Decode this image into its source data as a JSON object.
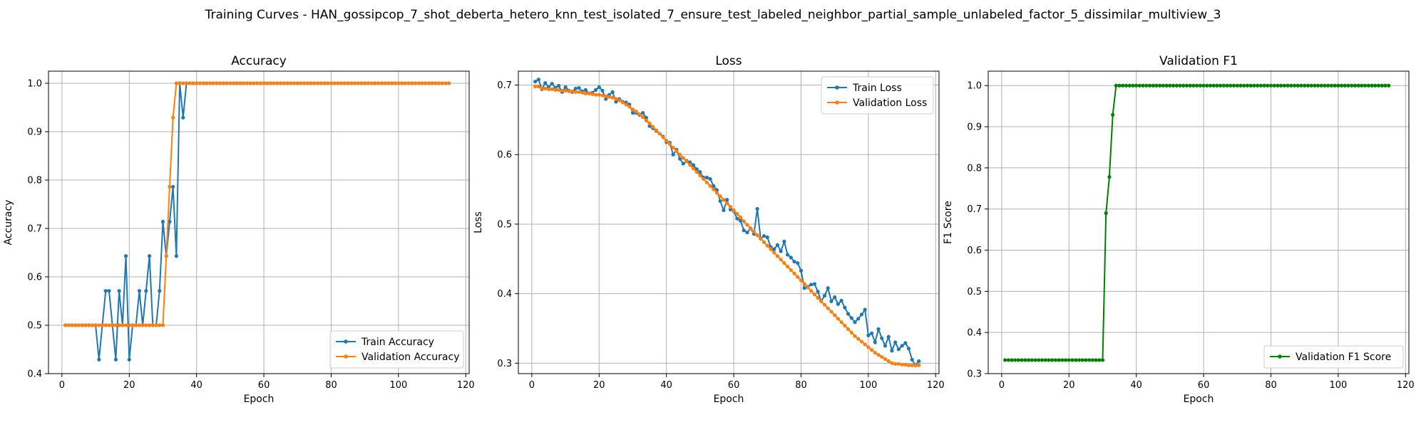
{
  "figure": {
    "title": "Training Curves - HAN_gossipcop_7_shot_deberta_hetero_knn_test_isolated_7_ensure_test_labeled_neighbor_partial_sample_unlabeled_factor_5_dissimilar_multiview_3"
  },
  "colors": {
    "blue": "#1f77b4",
    "orange": "#ff7f0e",
    "green": "#008000",
    "grid": "#b0b0b0"
  },
  "chart_data": [
    {
      "type": "line",
      "title": "Accuracy",
      "xlabel": "Epoch",
      "ylabel": "Accuracy",
      "xlim": [
        -4,
        121
      ],
      "ylim": [
        0.4,
        1.025
      ],
      "xticks": [
        0,
        20,
        40,
        60,
        80,
        100,
        120
      ],
      "yticks": [
        0.4,
        0.5,
        0.6,
        0.7,
        0.8,
        0.9,
        1.0
      ],
      "grid": true,
      "legend_position": "lower right",
      "series": [
        {
          "name": "Train Accuracy",
          "color": "#1f77b4",
          "x_range": [
            1,
            115
          ],
          "values": [
            0.5,
            0.5,
            0.5,
            0.5,
            0.5,
            0.5,
            0.5,
            0.5,
            0.5,
            0.5,
            0.429,
            0.5,
            0.571,
            0.571,
            0.5,
            0.429,
            0.571,
            0.5,
            0.643,
            0.429,
            0.5,
            0.5,
            0.571,
            0.5,
            0.571,
            0.643,
            0.5,
            0.5,
            0.571,
            0.714,
            0.643,
            0.714,
            0.786,
            0.643,
            1.0,
            0.929,
            1.0,
            1.0,
            1.0,
            1.0,
            1.0,
            1.0,
            1.0,
            1.0,
            1.0,
            1.0,
            1.0,
            1.0,
            1.0,
            1.0,
            1.0,
            1.0,
            1.0,
            1.0,
            1.0,
            1.0,
            1.0,
            1.0,
            1.0,
            1.0,
            1.0,
            1.0,
            1.0,
            1.0,
            1.0,
            1.0,
            1.0,
            1.0,
            1.0,
            1.0,
            1.0,
            1.0,
            1.0,
            1.0,
            1.0,
            1.0,
            1.0,
            1.0,
            1.0,
            1.0,
            1.0,
            1.0,
            1.0,
            1.0,
            1.0,
            1.0,
            1.0,
            1.0,
            1.0,
            1.0,
            1.0,
            1.0,
            1.0,
            1.0,
            1.0,
            1.0,
            1.0,
            1.0,
            1.0,
            1.0,
            1.0,
            1.0,
            1.0,
            1.0,
            1.0,
            1.0,
            1.0,
            1.0,
            1.0,
            1.0,
            1.0,
            1.0,
            1.0,
            1.0,
            1.0
          ]
        },
        {
          "name": "Validation Accuracy",
          "color": "#ff7f0e",
          "x_range": [
            1,
            115
          ],
          "values": [
            0.5,
            0.5,
            0.5,
            0.5,
            0.5,
            0.5,
            0.5,
            0.5,
            0.5,
            0.5,
            0.5,
            0.5,
            0.5,
            0.5,
            0.5,
            0.5,
            0.5,
            0.5,
            0.5,
            0.5,
            0.5,
            0.5,
            0.5,
            0.5,
            0.5,
            0.5,
            0.5,
            0.5,
            0.5,
            0.5,
            0.643,
            0.786,
            0.929,
            1.0,
            1.0,
            1.0,
            1.0,
            1.0,
            1.0,
            1.0,
            1.0,
            1.0,
            1.0,
            1.0,
            1.0,
            1.0,
            1.0,
            1.0,
            1.0,
            1.0,
            1.0,
            1.0,
            1.0,
            1.0,
            1.0,
            1.0,
            1.0,
            1.0,
            1.0,
            1.0,
            1.0,
            1.0,
            1.0,
            1.0,
            1.0,
            1.0,
            1.0,
            1.0,
            1.0,
            1.0,
            1.0,
            1.0,
            1.0,
            1.0,
            1.0,
            1.0,
            1.0,
            1.0,
            1.0,
            1.0,
            1.0,
            1.0,
            1.0,
            1.0,
            1.0,
            1.0,
            1.0,
            1.0,
            1.0,
            1.0,
            1.0,
            1.0,
            1.0,
            1.0,
            1.0,
            1.0,
            1.0,
            1.0,
            1.0,
            1.0,
            1.0,
            1.0,
            1.0,
            1.0,
            1.0,
            1.0,
            1.0,
            1.0,
            1.0,
            1.0,
            1.0,
            1.0,
            1.0,
            1.0,
            1.0
          ]
        }
      ]
    },
    {
      "type": "line",
      "title": "Loss",
      "xlabel": "Epoch",
      "ylabel": "Loss",
      "xlim": [
        -4,
        121
      ],
      "ylim": [
        0.285,
        0.72
      ],
      "xticks": [
        0,
        20,
        40,
        60,
        80,
        100,
        120
      ],
      "yticks": [
        0.3,
        0.4,
        0.5,
        0.6,
        0.7
      ],
      "grid": true,
      "legend_position": "upper right",
      "series": [
        {
          "name": "Train Loss",
          "color": "#1f77b4",
          "x_range": [
            1,
            115
          ],
          "values": [
            0.705,
            0.708,
            0.694,
            0.703,
            0.697,
            0.702,
            0.696,
            0.699,
            0.69,
            0.697,
            0.692,
            0.69,
            0.695,
            0.696,
            0.691,
            0.693,
            0.688,
            0.689,
            0.693,
            0.697,
            0.692,
            0.68,
            0.686,
            0.69,
            0.676,
            0.68,
            0.676,
            0.675,
            0.672,
            0.66,
            0.66,
            0.657,
            0.66,
            0.653,
            0.641,
            0.638,
            0.634,
            0.63,
            0.626,
            0.618,
            0.617,
            0.6,
            0.607,
            0.594,
            0.587,
            0.591,
            0.589,
            0.585,
            0.579,
            0.575,
            0.567,
            0.567,
            0.565,
            0.555,
            0.549,
            0.533,
            0.52,
            0.535,
            0.521,
            0.519,
            0.508,
            0.505,
            0.491,
            0.488,
            0.494,
            0.486,
            0.522,
            0.479,
            0.483,
            0.481,
            0.467,
            0.464,
            0.47,
            0.461,
            0.475,
            0.456,
            0.452,
            0.446,
            0.444,
            0.433,
            0.408,
            0.41,
            0.413,
            0.414,
            0.403,
            0.389,
            0.397,
            0.408,
            0.389,
            0.395,
            0.385,
            0.39,
            0.38,
            0.371,
            0.365,
            0.359,
            0.364,
            0.37,
            0.377,
            0.34,
            0.343,
            0.33,
            0.349,
            0.336,
            0.325,
            0.338,
            0.318,
            0.33,
            0.32,
            0.325,
            0.329,
            0.321,
            0.305,
            0.297,
            0.303
          ]
        },
        {
          "name": "Validation Loss",
          "color": "#ff7f0e",
          "x_range": [
            1,
            115
          ],
          "values": [
            0.698,
            0.698,
            0.695,
            0.695,
            0.694,
            0.694,
            0.693,
            0.693,
            0.692,
            0.692,
            0.691,
            0.691,
            0.69,
            0.69,
            0.689,
            0.688,
            0.688,
            0.687,
            0.686,
            0.686,
            0.685,
            0.684,
            0.683,
            0.682,
            0.68,
            0.678,
            0.675,
            0.672,
            0.669,
            0.665,
            0.662,
            0.658,
            0.654,
            0.649,
            0.645,
            0.64,
            0.635,
            0.63,
            0.625,
            0.62,
            0.615,
            0.61,
            0.605,
            0.6,
            0.595,
            0.59,
            0.585,
            0.58,
            0.575,
            0.57,
            0.565,
            0.56,
            0.555,
            0.55,
            0.545,
            0.54,
            0.535,
            0.53,
            0.525,
            0.52,
            0.515,
            0.51,
            0.504,
            0.499,
            0.494,
            0.489,
            0.484,
            0.479,
            0.474,
            0.469,
            0.464,
            0.459,
            0.454,
            0.449,
            0.444,
            0.439,
            0.434,
            0.429,
            0.424,
            0.419,
            0.414,
            0.409,
            0.404,
            0.399,
            0.394,
            0.389,
            0.384,
            0.379,
            0.374,
            0.369,
            0.364,
            0.359,
            0.354,
            0.349,
            0.344,
            0.339,
            0.335,
            0.331,
            0.327,
            0.323,
            0.319,
            0.315,
            0.312,
            0.309,
            0.306,
            0.303,
            0.3,
            0.299,
            0.299,
            0.298,
            0.298,
            0.297,
            0.297,
            0.297,
            0.297
          ]
        }
      ]
    },
    {
      "type": "line",
      "title": "Validation F1",
      "xlabel": "Epoch",
      "ylabel": "F1 Score",
      "xlim": [
        -4,
        121
      ],
      "ylim": [
        0.3,
        1.035
      ],
      "xticks": [
        0,
        20,
        40,
        60,
        80,
        100,
        120
      ],
      "yticks": [
        0.3,
        0.4,
        0.5,
        0.6,
        0.7,
        0.8,
        0.9,
        1.0
      ],
      "grid": true,
      "legend_position": "lower right",
      "series": [
        {
          "name": "Validation F1 Score",
          "color": "#008000",
          "x_range": [
            1,
            115
          ],
          "values": [
            0.333,
            0.333,
            0.333,
            0.333,
            0.333,
            0.333,
            0.333,
            0.333,
            0.333,
            0.333,
            0.333,
            0.333,
            0.333,
            0.333,
            0.333,
            0.333,
            0.333,
            0.333,
            0.333,
            0.333,
            0.333,
            0.333,
            0.333,
            0.333,
            0.333,
            0.333,
            0.333,
            0.333,
            0.333,
            0.333,
            0.69,
            0.778,
            0.929,
            1.0,
            1.0,
            1.0,
            1.0,
            1.0,
            1.0,
            1.0,
            1.0,
            1.0,
            1.0,
            1.0,
            1.0,
            1.0,
            1.0,
            1.0,
            1.0,
            1.0,
            1.0,
            1.0,
            1.0,
            1.0,
            1.0,
            1.0,
            1.0,
            1.0,
            1.0,
            1.0,
            1.0,
            1.0,
            1.0,
            1.0,
            1.0,
            1.0,
            1.0,
            1.0,
            1.0,
            1.0,
            1.0,
            1.0,
            1.0,
            1.0,
            1.0,
            1.0,
            1.0,
            1.0,
            1.0,
            1.0,
            1.0,
            1.0,
            1.0,
            1.0,
            1.0,
            1.0,
            1.0,
            1.0,
            1.0,
            1.0,
            1.0,
            1.0,
            1.0,
            1.0,
            1.0,
            1.0,
            1.0,
            1.0,
            1.0,
            1.0,
            1.0,
            1.0,
            1.0,
            1.0,
            1.0,
            1.0,
            1.0,
            1.0,
            1.0,
            1.0,
            1.0,
            1.0,
            1.0,
            1.0,
            1.0
          ]
        }
      ]
    }
  ]
}
